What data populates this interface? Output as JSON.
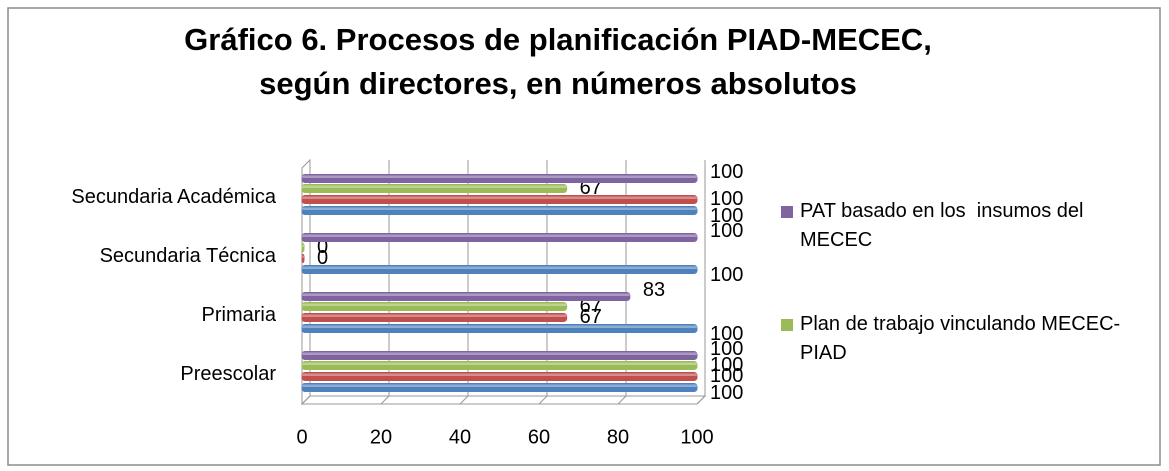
{
  "chart_data": {
    "type": "bar",
    "orientation": "horizontal",
    "title": [
      "Gráfico 6. Procesos de planificación PIAD-MECEC,",
      "según directores, en números absolutos"
    ],
    "categories": [
      "Preescolar",
      "Primaria",
      "Secundaria Técnica",
      "Secundaria Académica"
    ],
    "series": [
      {
        "color": "#4f81bd",
        "values": [
          100,
          100,
          100,
          100
        ]
      },
      {
        "color": "#c0504d",
        "values": [
          100,
          67,
          0,
          100
        ]
      },
      {
        "name": "Plan de trabajo vinculando MECEC-PIAD",
        "color": "#9bbb59",
        "values": [
          100,
          67,
          0,
          67
        ]
      },
      {
        "name": "PAT basado en los  insumos del MECEC",
        "color": "#8064a2",
        "values": [
          100,
          83,
          100,
          100
        ]
      }
    ],
    "xlim": [
      0,
      100
    ],
    "xticks": [
      0,
      20,
      40,
      60,
      80,
      100
    ],
    "grid": true,
    "legend": "right"
  }
}
